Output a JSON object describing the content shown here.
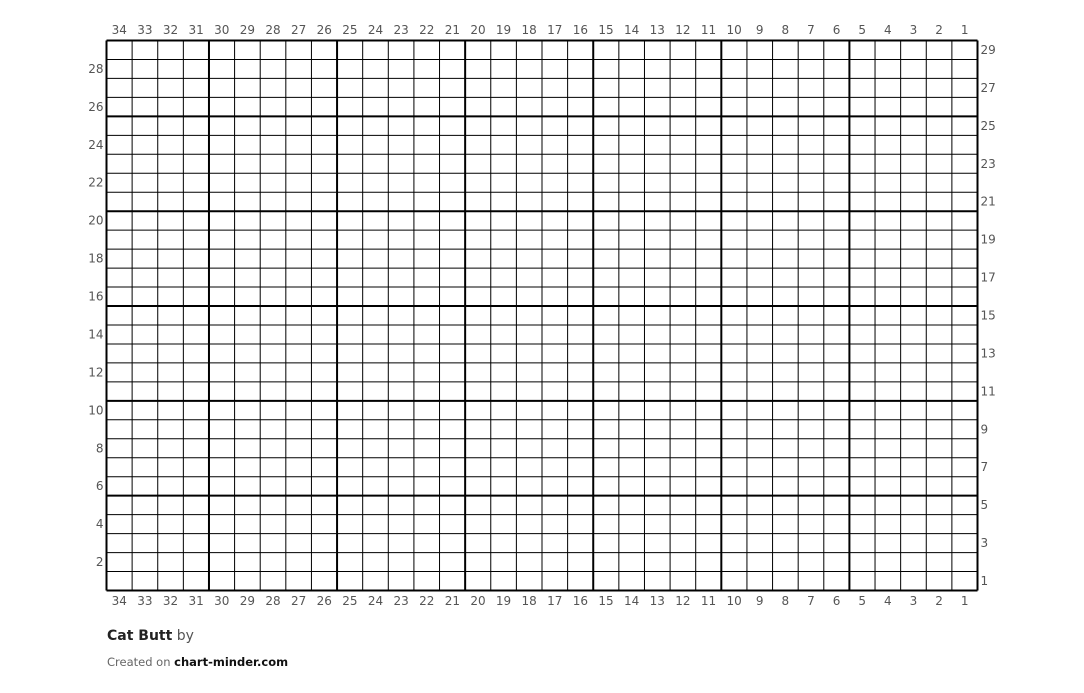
{
  "chart": {
    "columns": 34,
    "rows": 29,
    "thick_line_every": 5,
    "line_color": "#000000",
    "label_color": "#555555"
  },
  "footer": {
    "title": "Cat Butt",
    "by": "by",
    "created_on": "Created on",
    "site": "chart-minder.com"
  }
}
